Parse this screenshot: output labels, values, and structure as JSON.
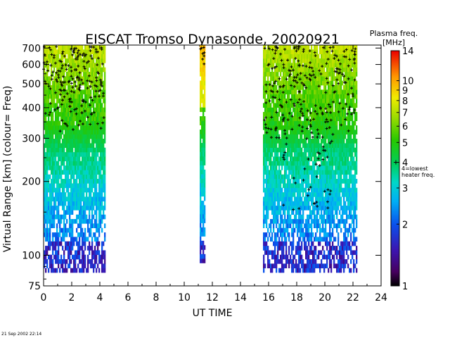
{
  "timestamp_label": "21 Sep 2002 22:14",
  "chart_data": {
    "type": "heatmap",
    "title": "EISCAT Tromso Dynasonde,  20020921",
    "xlabel": "UT TIME",
    "ylabel": "Virtual Range [km]   (colour= Freq)",
    "xlim": [
      0,
      24
    ],
    "ylim": [
      75,
      720
    ],
    "yscale": "log",
    "x_ticks": [
      0,
      2,
      4,
      6,
      8,
      10,
      12,
      14,
      16,
      18,
      20,
      22,
      24
    ],
    "y_ticks": [
      75,
      100,
      200,
      300,
      400,
      500,
      600,
      700
    ],
    "colorbar": {
      "title_line1": "Plasma freq.",
      "title_line2": "[MHz]",
      "range": [
        1,
        14
      ],
      "scale": "log",
      "ticks": [
        1,
        2,
        3,
        4,
        5,
        6,
        7,
        8,
        9,
        10,
        14
      ],
      "annotation_line1": "4=lowest",
      "annotation_line2": "heater freq.",
      "annotation_value": 4
    },
    "data_segments": [
      {
        "t_start": 0.0,
        "t_end": 4.4,
        "range_min_km": 85,
        "range_max_km": 720
      },
      {
        "t_start": 11.1,
        "t_end": 11.5,
        "range_min_km": 93,
        "range_max_km": 720
      },
      {
        "t_start": 15.6,
        "t_end": 22.3,
        "range_min_km": 85,
        "range_max_km": 720
      }
    ],
    "grid": false,
    "legend": "colorbar-right"
  }
}
